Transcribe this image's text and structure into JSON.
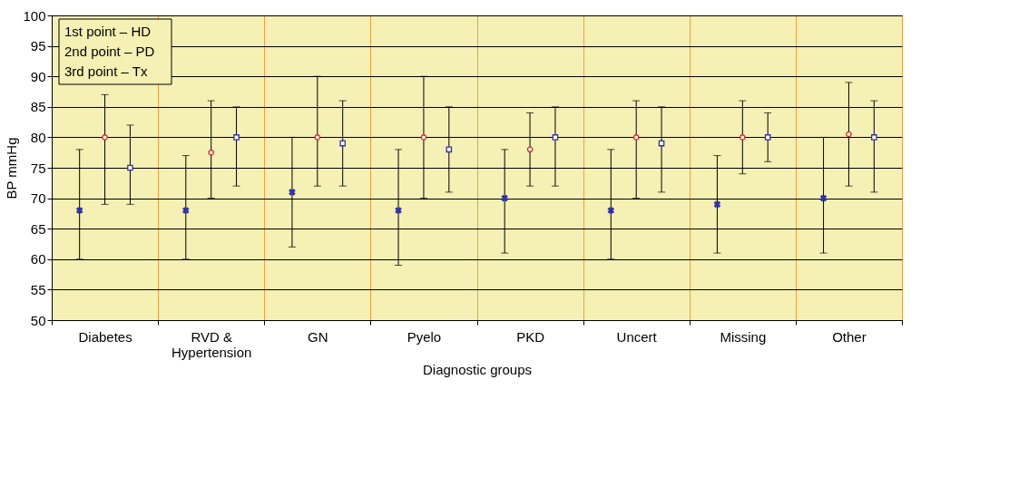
{
  "chart_data": {
    "type": "scatter",
    "xlabel": "Diagnostic groups",
    "ylabel": "BP mmHg",
    "categories": [
      "Diabetes",
      "RVD & Hypertension",
      "GN",
      "Pyelo",
      "PKD",
      "Uncert",
      "Missing",
      "Other"
    ],
    "series": [
      {
        "color": "#3030b0",
        "marker": "cross",
        "values": [
          68,
          68,
          71,
          68,
          70,
          68,
          69,
          70
        ],
        "errors": [
          [
            60,
            78
          ],
          [
            60,
            77
          ],
          [
            62,
            80
          ],
          [
            59,
            78
          ],
          [
            61,
            78
          ],
          [
            60,
            78
          ],
          [
            61,
            77
          ],
          [
            61,
            80
          ]
        ]
      },
      {
        "color": "#e02020",
        "marker": "circle",
        "values": [
          80,
          77.5,
          80,
          80,
          78,
          80,
          80,
          80.5
        ],
        "errors": [
          [
            69,
            87
          ],
          [
            70,
            86
          ],
          [
            72,
            90
          ],
          [
            70,
            90
          ],
          [
            72,
            84
          ],
          [
            70,
            86
          ],
          [
            74,
            86
          ],
          [
            72,
            89
          ]
        ]
      },
      {
        "color": "#3030b0",
        "marker": "square",
        "values": [
          75,
          80,
          79,
          78,
          80,
          79,
          80,
          80
        ],
        "errors": [
          [
            69,
            82
          ],
          [
            72,
            85
          ],
          [
            72,
            86
          ],
          [
            71,
            85
          ],
          [
            72,
            85
          ],
          [
            71,
            85
          ],
          [
            76,
            84
          ],
          [
            71,
            86
          ]
        ]
      }
    ],
    "ylim": [
      50,
      100
    ],
    "yticks": [
      50,
      55,
      60,
      65,
      70,
      75,
      80,
      85,
      90,
      95,
      100
    ],
    "grid": true,
    "annotations": [
      "1st point – HD",
      "2nd point – PD",
      "3rd point – Tx"
    ]
  }
}
